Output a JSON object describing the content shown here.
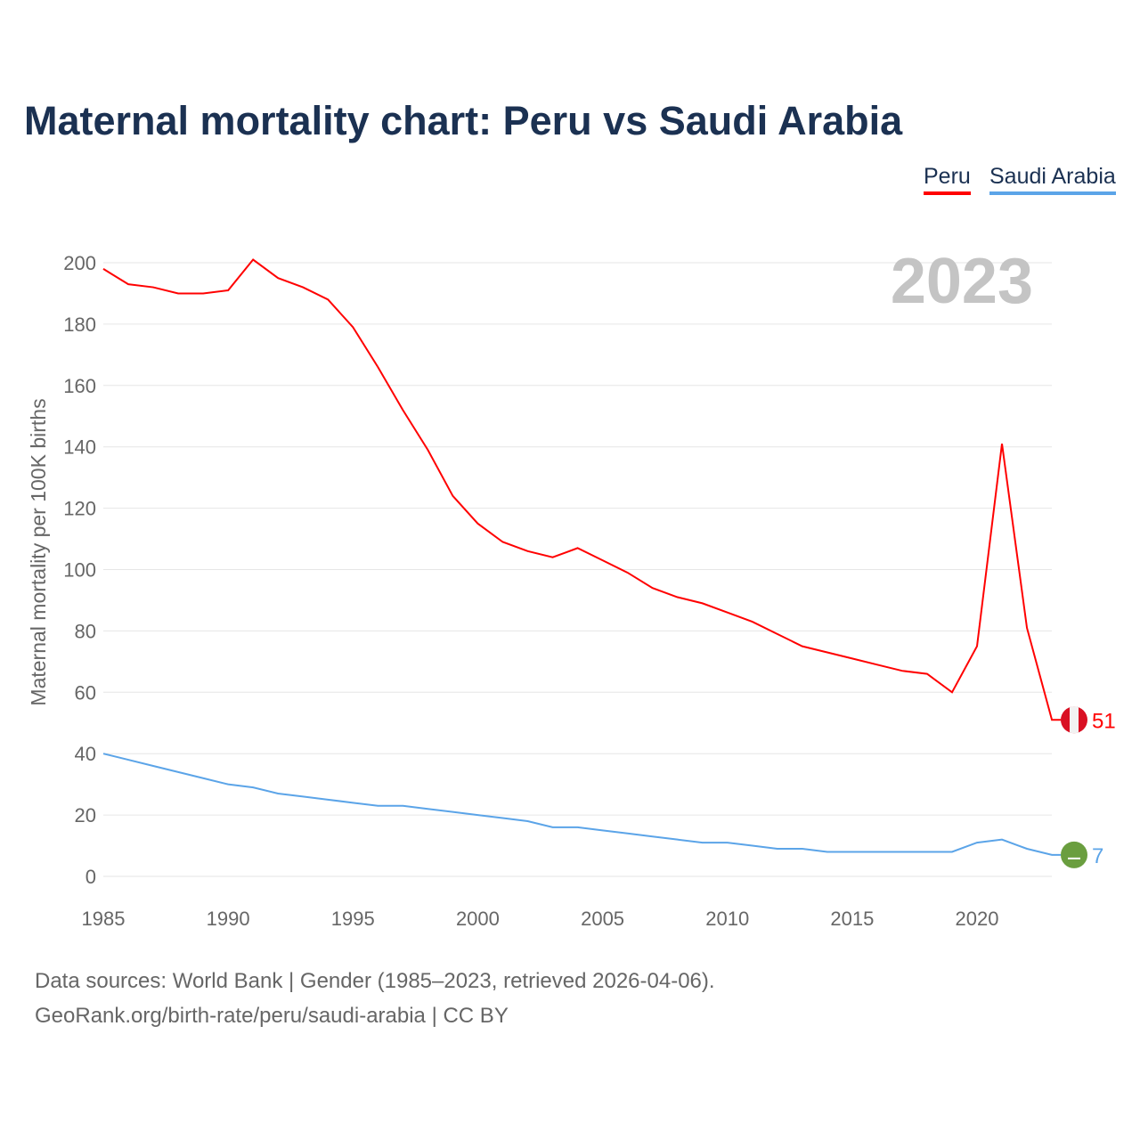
{
  "chart_data": {
    "type": "line",
    "title": "Maternal mortality chart: Peru vs Saudi Arabia",
    "ylabel": "Maternal mortality per 100K births",
    "xlabel": "",
    "year_label": "2023",
    "xlim": [
      1985,
      2023
    ],
    "ylim": [
      0,
      200
    ],
    "x_ticks": [
      1985,
      1990,
      1995,
      2000,
      2005,
      2010,
      2015,
      2020
    ],
    "y_ticks": [
      0,
      20,
      40,
      60,
      80,
      100,
      120,
      140,
      160,
      180,
      200
    ],
    "grid": true,
    "legend_placement": "top-right",
    "x": [
      1985,
      1986,
      1987,
      1988,
      1989,
      1990,
      1991,
      1992,
      1993,
      1994,
      1995,
      1996,
      1997,
      1998,
      1999,
      2000,
      2001,
      2002,
      2003,
      2004,
      2005,
      2006,
      2007,
      2008,
      2009,
      2010,
      2011,
      2012,
      2013,
      2014,
      2015,
      2016,
      2017,
      2018,
      2019,
      2020,
      2021,
      2022,
      2023
    ],
    "series": [
      {
        "name": "Peru",
        "color": "#ff0000",
        "end_label": "51",
        "values": [
          198,
          193,
          192,
          190,
          190,
          191,
          201,
          195,
          192,
          188,
          179,
          166,
          152,
          139,
          124,
          115,
          109,
          106,
          104,
          107,
          103,
          99,
          94,
          91,
          89,
          86,
          83,
          79,
          75,
          73,
          71,
          69,
          67,
          66,
          60,
          75,
          141,
          81,
          51
        ]
      },
      {
        "name": "Saudi Arabia",
        "color": "#5ba4e8",
        "end_label": "7",
        "values": [
          40,
          38,
          36,
          34,
          32,
          30,
          29,
          27,
          26,
          25,
          24,
          23,
          23,
          22,
          21,
          20,
          19,
          18,
          16,
          16,
          15,
          14,
          13,
          12,
          11,
          11,
          10,
          9,
          9,
          8,
          8,
          8,
          8,
          8,
          8,
          11,
          12,
          9,
          7
        ]
      }
    ]
  },
  "footer": {
    "line1": "Data sources: World Bank | Gender (1985–2023, retrieved 2026-04-06).",
    "line2": "GeoRank.org/birth-rate/peru/saudi-arabia | CC BY"
  }
}
